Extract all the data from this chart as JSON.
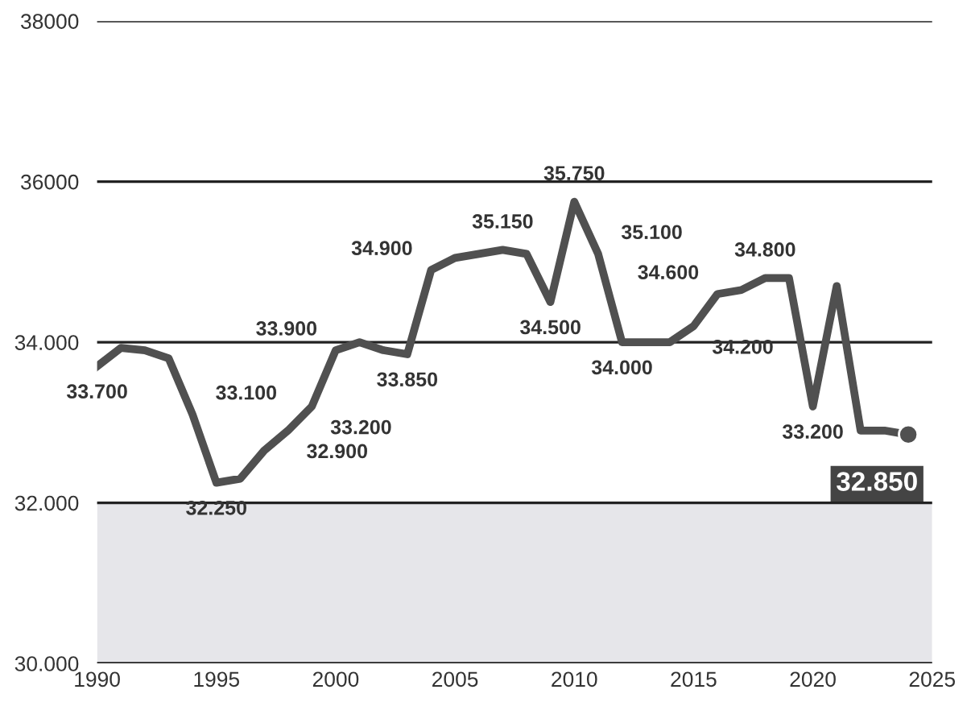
{
  "chart_data": {
    "type": "line",
    "x": [
      1990,
      1991,
      1992,
      1993,
      1994,
      1995,
      1996,
      1997,
      1998,
      1999,
      2000,
      2001,
      2002,
      2003,
      2004,
      2005,
      2006,
      2007,
      2008,
      2009,
      2010,
      2011,
      2012,
      2013,
      2014,
      2015,
      2016,
      2017,
      2018,
      2019,
      2020,
      2021,
      2022,
      2023,
      2024
    ],
    "series": [
      {
        "color": "#505050",
        "values": [
          33700,
          33930,
          33900,
          33800,
          33100,
          32250,
          32300,
          32650,
          32900,
          33200,
          33900,
          34000,
          33900,
          33850,
          34900,
          35050,
          35100,
          35150,
          35100,
          34500,
          35750,
          35100,
          34000,
          34000,
          34000,
          34200,
          34600,
          34650,
          34800,
          34800,
          33200,
          34700,
          32900,
          32900,
          32850
        ],
        "value_labels": [
          "33.700",
          null,
          null,
          null,
          "33.100",
          "32.250",
          null,
          null,
          "32.900",
          "33.200",
          "33.900",
          null,
          null,
          "33.850",
          "34.900",
          null,
          null,
          "35.150",
          null,
          "34.500",
          "35.750",
          "35.100",
          "34.000",
          null,
          null,
          "34.200",
          "34.600",
          null,
          "34.800",
          null,
          "33.200",
          null,
          null,
          null,
          null
        ]
      },
      {
        "type": "scatter",
        "color": "#505050",
        "marker": "circle",
        "x": [
          2024
        ],
        "values": [
          32850
        ],
        "value_labels": [
          "32.850"
        ]
      }
    ],
    "xlim": [
      1990,
      2025
    ],
    "xticks": [
      1990,
      1995,
      2000,
      2005,
      2010,
      2015,
      2020,
      2025
    ],
    "ylim": [
      30000,
      38000
    ],
    "yticks": [
      {
        "value": 30000,
        "label": "30.000"
      },
      {
        "value": 32000,
        "label": "32.000"
      },
      {
        "value": 34000,
        "label": "34.000"
      },
      {
        "value": 36000,
        "label": "36000"
      },
      {
        "value": 38000,
        "label": "38000"
      }
    ],
    "grid": "y",
    "legend": false,
    "line_style": "solid",
    "bands": [
      {
        "axis": "y",
        "from": 30000,
        "to": 32000,
        "color": "#e6e6ea"
      }
    ]
  }
}
